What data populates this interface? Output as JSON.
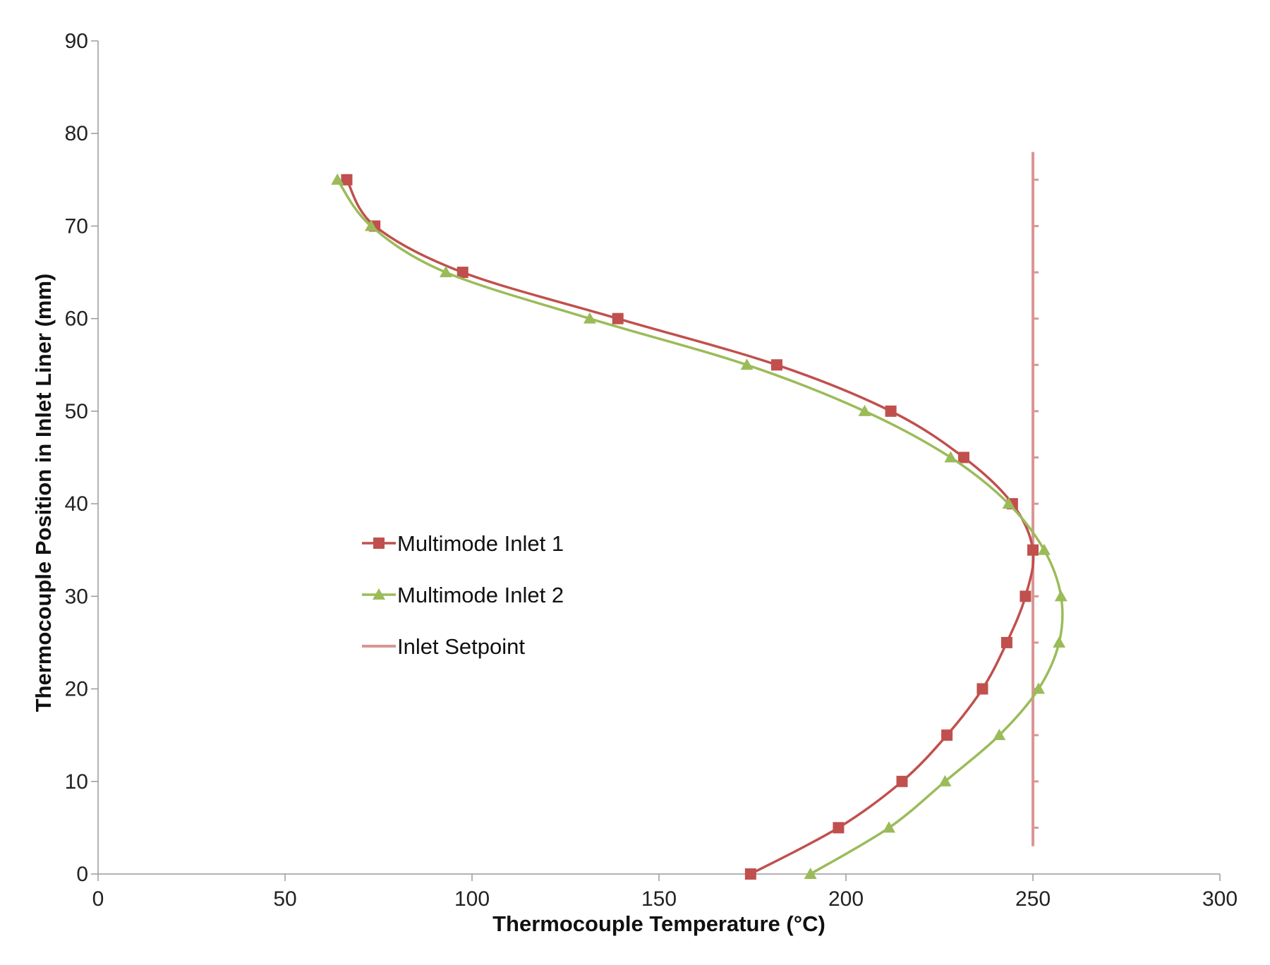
{
  "chart_data": {
    "type": "line",
    "title": "",
    "xlabel": "Thermocouple Temperature (°C)",
    "ylabel": "Thermocouple Position in Inlet Liner (mm)",
    "xlim": [
      0,
      300
    ],
    "ylim": [
      0,
      90
    ],
    "xticks": [
      "0",
      "50",
      "100",
      "150",
      "200",
      "250",
      "300"
    ],
    "yticks": [
      "0",
      "10",
      "20",
      "30",
      "40",
      "50",
      "60",
      "70",
      "80",
      "90"
    ],
    "grid": false,
    "legend_position": "center-left",
    "series": [
      {
        "name": "Multimode Inlet 1",
        "color": "#c0504d",
        "marker": "square",
        "points": [
          {
            "x": 174.5,
            "y": 0
          },
          {
            "x": 198,
            "y": 5
          },
          {
            "x": 215,
            "y": 10
          },
          {
            "x": 227,
            "y": 15
          },
          {
            "x": 236.5,
            "y": 20
          },
          {
            "x": 243,
            "y": 25
          },
          {
            "x": 248,
            "y": 30
          },
          {
            "x": 250,
            "y": 35
          },
          {
            "x": 244.5,
            "y": 40
          },
          {
            "x": 231.5,
            "y": 45
          },
          {
            "x": 212,
            "y": 50
          },
          {
            "x": 181.5,
            "y": 55
          },
          {
            "x": 139,
            "y": 60
          },
          {
            "x": 97.5,
            "y": 65
          },
          {
            "x": 74,
            "y": 70
          },
          {
            "x": 66.5,
            "y": 75
          }
        ]
      },
      {
        "name": "Multimode Inlet 2",
        "color": "#9bbb59",
        "marker": "triangle",
        "points": [
          {
            "x": 190.5,
            "y": 0
          },
          {
            "x": 211.5,
            "y": 5
          },
          {
            "x": 226.5,
            "y": 10
          },
          {
            "x": 241,
            "y": 15
          },
          {
            "x": 251.5,
            "y": 20
          },
          {
            "x": 257,
            "y": 25
          },
          {
            "x": 257.5,
            "y": 30
          },
          {
            "x": 253,
            "y": 35
          },
          {
            "x": 243.5,
            "y": 40
          },
          {
            "x": 228,
            "y": 45
          },
          {
            "x": 205,
            "y": 50
          },
          {
            "x": 173.5,
            "y": 55
          },
          {
            "x": 131.5,
            "y": 60
          },
          {
            "x": 93,
            "y": 65
          },
          {
            "x": 73,
            "y": 70
          },
          {
            "x": 64,
            "y": 75
          }
        ]
      },
      {
        "name": "Inlet Setpoint",
        "color": "#d99694",
        "marker": "dash",
        "points": [
          {
            "x": 250,
            "y": 3
          },
          {
            "x": 250,
            "y": 78
          }
        ]
      }
    ]
  }
}
